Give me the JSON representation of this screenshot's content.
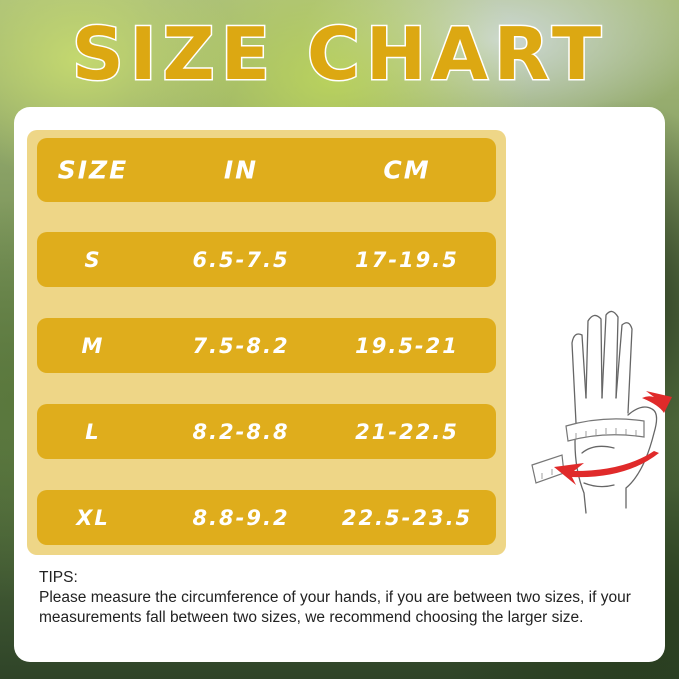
{
  "title": "SIZE CHART",
  "table": {
    "headers": [
      "SIZE",
      "IN",
      "CM"
    ],
    "rows": [
      [
        "S",
        "6.5-7.5",
        "17-19.5"
      ],
      [
        "M",
        "7.5-8.2",
        "19.5-21"
      ],
      [
        "L",
        "8.2-8.8",
        "21-22.5"
      ],
      [
        "XL",
        "8.8-9.2",
        "22.5-23.5"
      ]
    ]
  },
  "tips": {
    "label": "TIPS:",
    "text": "Please measure the circumference of your hands, if you are between two sizes,  if your measurements fall between two sizes, we recommend choosing the larger size."
  },
  "illustration": "hand-measuring-tape-icon",
  "colors": {
    "gold": "#dfad1c",
    "panel": "#eed687",
    "arrow": "#e02a2a"
  }
}
